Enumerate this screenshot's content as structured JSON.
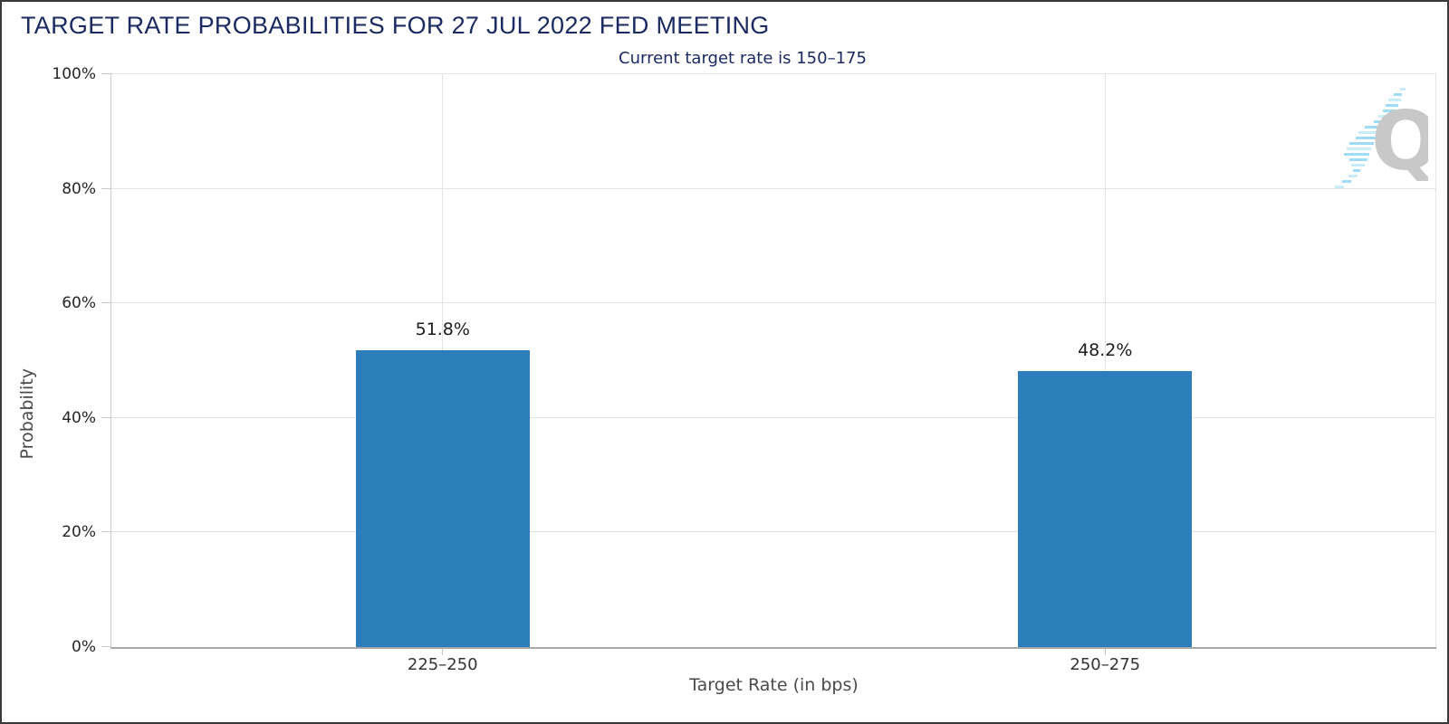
{
  "header": {
    "title": "TARGET RATE PROBABILITIES FOR 27 JUL 2022 FED MEETING",
    "subtitle": "Current target rate is 150–175"
  },
  "watermark": {
    "letter": "Q"
  },
  "chart_data": {
    "type": "bar",
    "title": "TARGET RATE PROBABILITIES FOR 27 JUL 2022 FED MEETING",
    "subtitle": "Current target rate is 150–175",
    "categories": [
      "225–250",
      "250–275"
    ],
    "values": [
      51.8,
      48.2
    ],
    "value_labels": [
      "51.8%",
      "48.2%"
    ],
    "xlabel": "Target Rate (in bps)",
    "ylabel": "Probability",
    "ylim": [
      0,
      100
    ],
    "yticks": [
      0,
      20,
      40,
      60,
      80,
      100
    ],
    "ytick_labels": [
      "0%",
      "20%",
      "40%",
      "60%",
      "80%",
      "100%"
    ],
    "grid": true,
    "legend": "none",
    "bar_color": "#2b7eb9",
    "colors": {
      "title_navy": "#1b2a63",
      "bar_blue": "#2b7eb9",
      "gridline": "#e2e2e2",
      "axis_line": "#a8a8a8",
      "axis_title_gray": "#4a4a4a",
      "watermark_gray": "#c8c8c8",
      "watermark_blue": "#9edbf7"
    }
  }
}
